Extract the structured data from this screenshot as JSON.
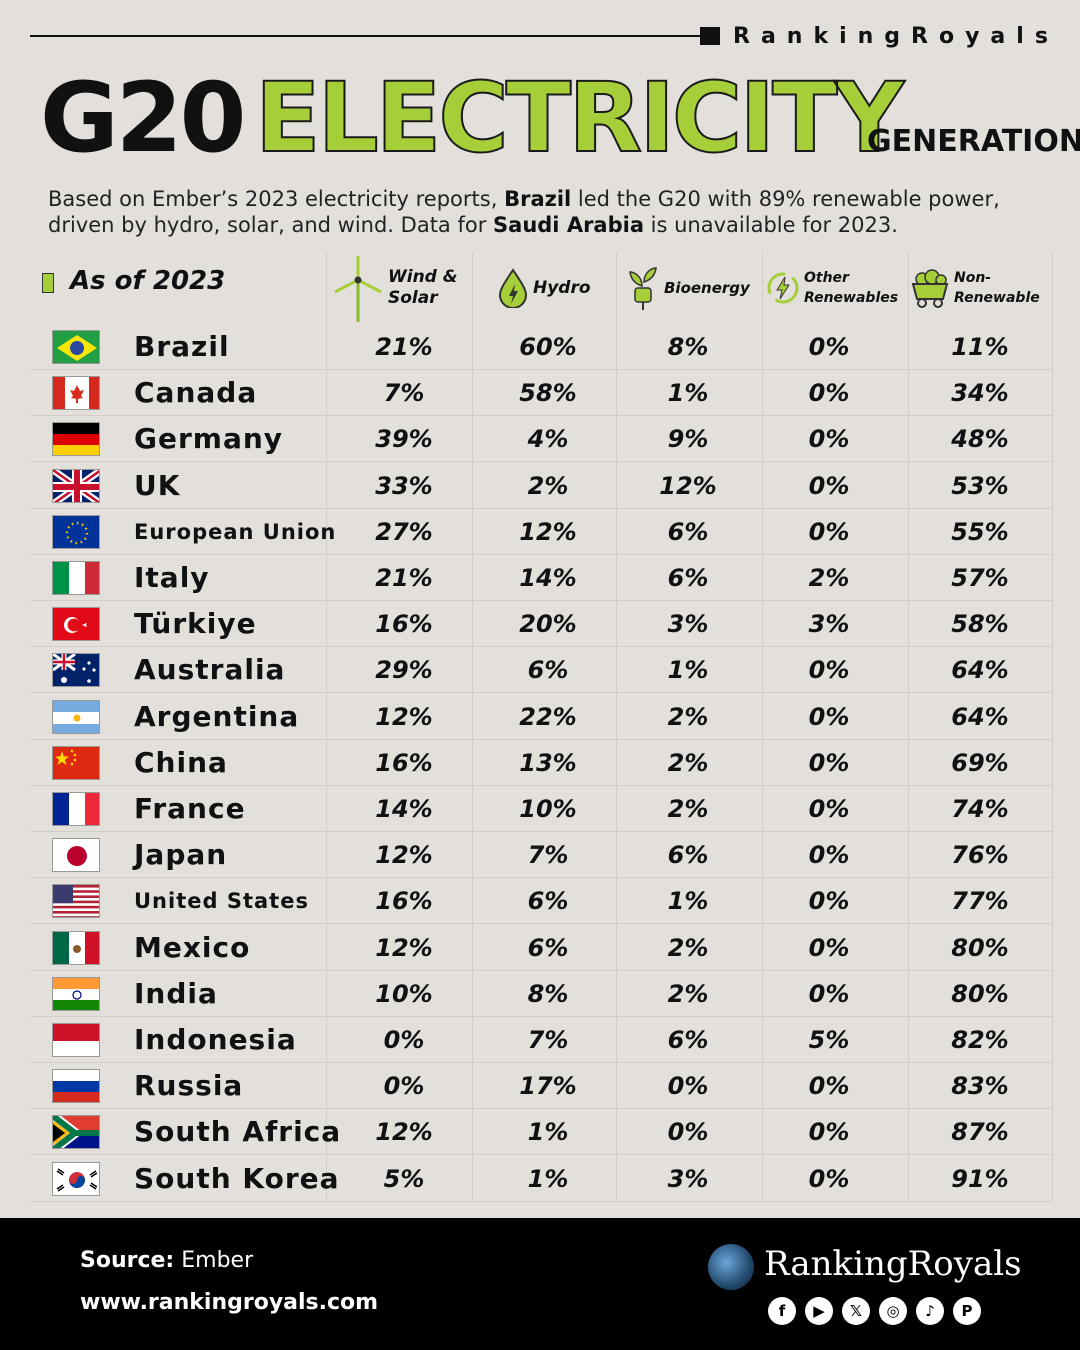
{
  "brand_top": "RankingRoyals",
  "title": {
    "g20": "G20",
    "electricity": "ELECTRICITY",
    "generation": "GENERATION"
  },
  "intro": {
    "p1": "Based on Ember’s 2023 electricity reports, ",
    "b1": "Brazil",
    "p2": " led the G20 with 89% renewable power, driven by hydro, solar, and wind. Data for ",
    "b2": "Saudi Arabia",
    "p3": " is unavailable for 2023."
  },
  "as_of": "As of 2023",
  "columns": {
    "wind_solar": [
      "Wind &",
      "Solar"
    ],
    "hydro": "Hydro",
    "bio": "Bioenergy",
    "other": [
      "Other",
      "Renewables"
    ],
    "non": [
      "Non-",
      "Renewable"
    ]
  },
  "chart_data": {
    "type": "table",
    "columns": [
      "Wind & Solar",
      "Hydro",
      "Bioenergy",
      "Other Renewables",
      "Non-Renewable"
    ],
    "rows": [
      {
        "country": "Brazil",
        "flag": "flag-brazil",
        "values": [
          "21%",
          "60%",
          "8%",
          "0%",
          "11%"
        ]
      },
      {
        "country": "Canada",
        "flag": "flag-canada",
        "values": [
          "7%",
          "58%",
          "1%",
          "0%",
          "34%"
        ]
      },
      {
        "country": "Germany",
        "flag": "flag-germany",
        "values": [
          "39%",
          "4%",
          "9%",
          "0%",
          "48%"
        ]
      },
      {
        "country": "UK",
        "flag": "flag-uk",
        "values": [
          "33%",
          "2%",
          "12%",
          "0%",
          "53%"
        ]
      },
      {
        "country": "European Union",
        "flag": "flag-eu",
        "values": [
          "27%",
          "12%",
          "6%",
          "0%",
          "55%"
        ]
      },
      {
        "country": "Italy",
        "flag": "flag-italy",
        "values": [
          "21%",
          "14%",
          "6%",
          "2%",
          "57%"
        ]
      },
      {
        "country": "Türkiye",
        "flag": "flag-turkiye",
        "values": [
          "16%",
          "20%",
          "3%",
          "3%",
          "58%"
        ]
      },
      {
        "country": "Australia",
        "flag": "flag-australia",
        "values": [
          "29%",
          "6%",
          "1%",
          "0%",
          "64%"
        ]
      },
      {
        "country": "Argentina",
        "flag": "flag-argentina",
        "values": [
          "12%",
          "22%",
          "2%",
          "0%",
          "64%"
        ]
      },
      {
        "country": "China",
        "flag": "flag-china",
        "values": [
          "16%",
          "13%",
          "2%",
          "0%",
          "69%"
        ]
      },
      {
        "country": "France",
        "flag": "flag-france",
        "values": [
          "14%",
          "10%",
          "2%",
          "0%",
          "74%"
        ]
      },
      {
        "country": "Japan",
        "flag": "flag-japan",
        "values": [
          "12%",
          "7%",
          "6%",
          "0%",
          "76%"
        ]
      },
      {
        "country": "United States",
        "flag": "flag-usa",
        "values": [
          "16%",
          "6%",
          "1%",
          "0%",
          "77%"
        ]
      },
      {
        "country": "Mexico",
        "flag": "flag-mexico",
        "values": [
          "12%",
          "6%",
          "2%",
          "0%",
          "80%"
        ]
      },
      {
        "country": "India",
        "flag": "flag-india",
        "values": [
          "10%",
          "8%",
          "2%",
          "0%",
          "80%"
        ]
      },
      {
        "country": "Indonesia",
        "flag": "flag-indonesia",
        "values": [
          "0%",
          "7%",
          "6%",
          "5%",
          "82%"
        ]
      },
      {
        "country": "Russia",
        "flag": "flag-russia",
        "values": [
          "0%",
          "17%",
          "0%",
          "0%",
          "83%"
        ]
      },
      {
        "country": "South Africa",
        "flag": "flag-south-africa",
        "values": [
          "12%",
          "1%",
          "0%",
          "0%",
          "87%"
        ]
      },
      {
        "country": "South Korea",
        "flag": "flag-south-korea",
        "values": [
          "5%",
          "1%",
          "3%",
          "0%",
          "91%"
        ]
      }
    ]
  },
  "footer": {
    "source_label": "Source:",
    "source_value": "Ember",
    "url": "www.rankingroyals.com",
    "brand": "RankingRoyals",
    "social": [
      "f",
      "▶",
      "𝕏",
      "◎",
      "♪",
      "P"
    ],
    "social_icons": [
      "facebook-icon",
      "youtube-icon",
      "x-icon",
      "instagram-icon",
      "tiktok-icon",
      "pinterest-icon"
    ]
  },
  "colors": {
    "accent": "#a6ce39",
    "background": "#e3e0dc",
    "footer": "#000000"
  }
}
